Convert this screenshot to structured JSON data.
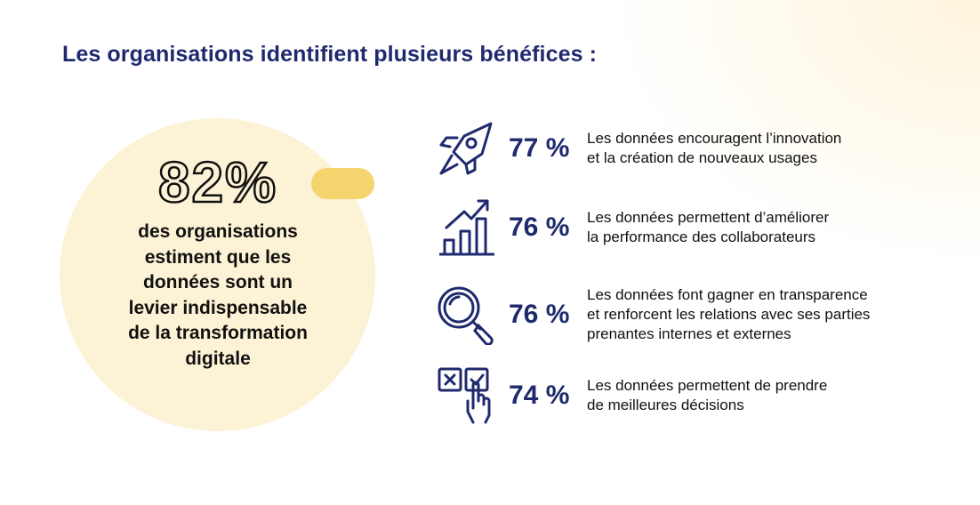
{
  "title": "Les organisations identifient plusieurs bénéfices :",
  "highlight": {
    "value": "82%",
    "lines": [
      "des organisations",
      "estiment que les",
      "données sont un",
      "levier indispensable",
      "de la transformation",
      "digitale"
    ]
  },
  "benefits": [
    {
      "icon": "rocket-icon",
      "percent": "77 %",
      "lines": [
        "Les données encouragent l’innovation",
        "et la création de nouveaux usages"
      ]
    },
    {
      "icon": "growth-chart-icon",
      "percent": "76 %",
      "lines": [
        "Les données permettent d’améliorer",
        "la performance des collaborateurs"
      ]
    },
    {
      "icon": "magnifier-icon",
      "percent": "76 %",
      "lines": [
        "Les données font gagner en transparence",
        "et renforcent les relations avec ses parties",
        "prenantes internes et externes"
      ]
    },
    {
      "icon": "checkbox-click-icon",
      "percent": "74 %",
      "lines": [
        "Les données permettent de prendre",
        "de meilleures décisions"
      ]
    }
  ],
  "colors": {
    "navy": "#1f2a6e",
    "circle": "#fcf2d5",
    "pill": "#f6d46d"
  }
}
